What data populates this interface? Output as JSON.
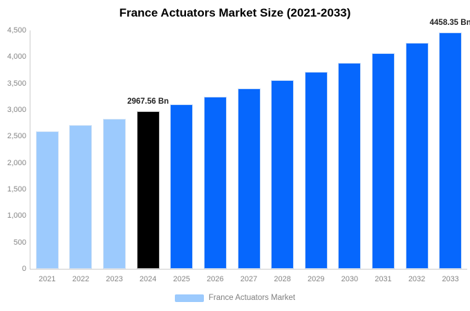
{
  "title": "France Actuators Market Size (2021-2033)",
  "colors": {
    "historical": "#9CCAFD",
    "highlight": "#000000",
    "forecast": "#0667FD",
    "axis_line": "#cccccc",
    "tick_text": "#848484",
    "annotation_text": "#222222",
    "background": "#ffffff"
  },
  "legend": {
    "label": "France Actuators Market",
    "swatch_color": "#9CCAFD",
    "position": "bottom"
  },
  "chart_data": {
    "type": "bar",
    "title": "France Actuators Market Size (2021-2033)",
    "xlabel": "",
    "ylabel": "",
    "categories": [
      "2021",
      "2022",
      "2023",
      "2024",
      "2025",
      "2026",
      "2027",
      "2028",
      "2029",
      "2030",
      "2031",
      "2032",
      "2033"
    ],
    "values": [
      2590,
      2710,
      2835,
      2967.56,
      3105,
      3248,
      3399,
      3556,
      3720,
      3892,
      4072,
      4260,
      4458.35
    ],
    "bar_roles": [
      "historical",
      "historical",
      "historical",
      "highlight",
      "forecast",
      "forecast",
      "forecast",
      "forecast",
      "forecast",
      "forecast",
      "forecast",
      "forecast",
      "forecast"
    ],
    "annotations": [
      {
        "category": "2024",
        "text": "2967.56 Bn"
      },
      {
        "category": "2033",
        "text": "4458.35 Bn"
      }
    ],
    "ylim": [
      0,
      4500
    ],
    "ytick_step": 500,
    "ytick_labels": [
      "0",
      "500",
      "1,000",
      "1,500",
      "2,000",
      "2,500",
      "3,000",
      "3,500",
      "4,000",
      "4,500"
    ],
    "grid": false,
    "legend_entries": [
      "France Actuators Market"
    ],
    "legend_position": "bottom"
  }
}
